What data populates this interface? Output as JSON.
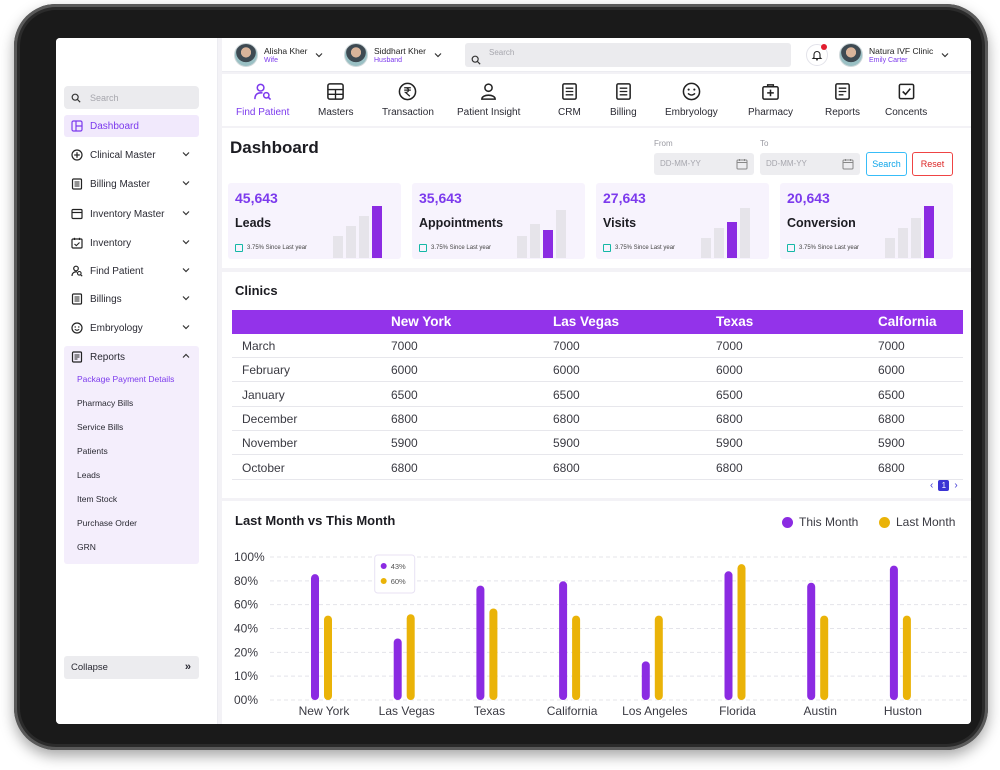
{
  "topbar": {
    "profiles": [
      {
        "name": "Alisha Kher",
        "role": "Wife"
      },
      {
        "name": "Siddhart Kher",
        "role": "Husband"
      }
    ],
    "search_placeholder": "Search",
    "clinic": {
      "name": "Natura IVF Clinic",
      "user": "Emily Carter"
    }
  },
  "sidebar": {
    "search_placeholder": "Search",
    "items": [
      {
        "label": "Dashboard",
        "icon": "dashboard-icon"
      },
      {
        "label": "Clinical Master",
        "icon": "plus-circle-icon"
      },
      {
        "label": "Billing Master",
        "icon": "billing-icon"
      },
      {
        "label": "Inventory Master",
        "icon": "inventory-icon"
      },
      {
        "label": "Inventory",
        "icon": "calendar-icon"
      },
      {
        "label": "Find Patient",
        "icon": "find-patient-icon"
      },
      {
        "label": "Billings",
        "icon": "billing-icon"
      },
      {
        "label": "Embryology",
        "icon": "smile-icon"
      },
      {
        "label": "Reports",
        "icon": "reports-icon"
      }
    ],
    "report_subitems": [
      "Package Payment Details",
      "Pharmacy Bills",
      "Service Bills",
      "Patients",
      "Leads",
      "Item Stock",
      "Purchase Order",
      "GRN"
    ],
    "collapse_label": "Collapse"
  },
  "modules": [
    "Find Patient",
    "Masters",
    "Transaction",
    "Patient Insight",
    "CRM",
    "Billing",
    "Embryology",
    "Pharmacy",
    "Reports",
    "Concents"
  ],
  "dashboard": {
    "title": "Dashboard",
    "from_label": "From",
    "to_label": "To",
    "date_placeholder": "DD-MM-YY",
    "search_btn": "Search",
    "reset_btn": "Reset",
    "kpis": [
      {
        "value": "45,643",
        "label": "Leads",
        "since": "3.75% Since Last year"
      },
      {
        "value": "35,643",
        "label": "Appointments",
        "since": "3.75% Since Last year"
      },
      {
        "value": "27,643",
        "label": "Visits",
        "since": "3.75% Since Last year"
      },
      {
        "value": "20,643",
        "label": "Conversion",
        "since": "3.75% Since Last year"
      }
    ]
  },
  "clinics": {
    "title": "Clinics",
    "columns": [
      "",
      "New York",
      "Las Vegas",
      "Texas",
      "Calfornia"
    ],
    "rows": [
      [
        "March",
        "7000",
        "7000",
        "7000",
        "7000"
      ],
      [
        "February",
        "6000",
        "6000",
        "6000",
        "6000"
      ],
      [
        "January",
        "6500",
        "6500",
        "6500",
        "6500"
      ],
      [
        "December",
        "6800",
        "6800",
        "6800",
        "6800"
      ],
      [
        "November",
        "5900",
        "5900",
        "5900",
        "5900"
      ],
      [
        "October",
        "6800",
        "6800",
        "6800",
        "6800"
      ]
    ],
    "page": "1"
  },
  "chart_data": {
    "type": "bar",
    "title": "Last Month vs This Month",
    "categories": [
      "New York",
      "Las Vegas",
      "Texas",
      "California",
      "Los Angeles",
      "Florida",
      "Austin",
      "Huston"
    ],
    "series": [
      {
        "name": "This Month",
        "color": "#8b2be2",
        "values": [
          88,
          43,
          80,
          83,
          27,
          90,
          82,
          94
        ]
      },
      {
        "name": "Last Month",
        "color": "#eab308",
        "values": [
          59,
          60,
          64,
          59,
          59,
          95,
          59,
          59
        ]
      }
    ],
    "yticks": [
      "00%",
      "10%",
      "20%",
      "40%",
      "60%",
      "80%",
      "100%"
    ],
    "ylim": [
      0,
      100
    ],
    "legend_position": "top-right",
    "tooltip": {
      "category": "Las Vegas",
      "this_month": "43%",
      "last_month": "60%"
    }
  }
}
